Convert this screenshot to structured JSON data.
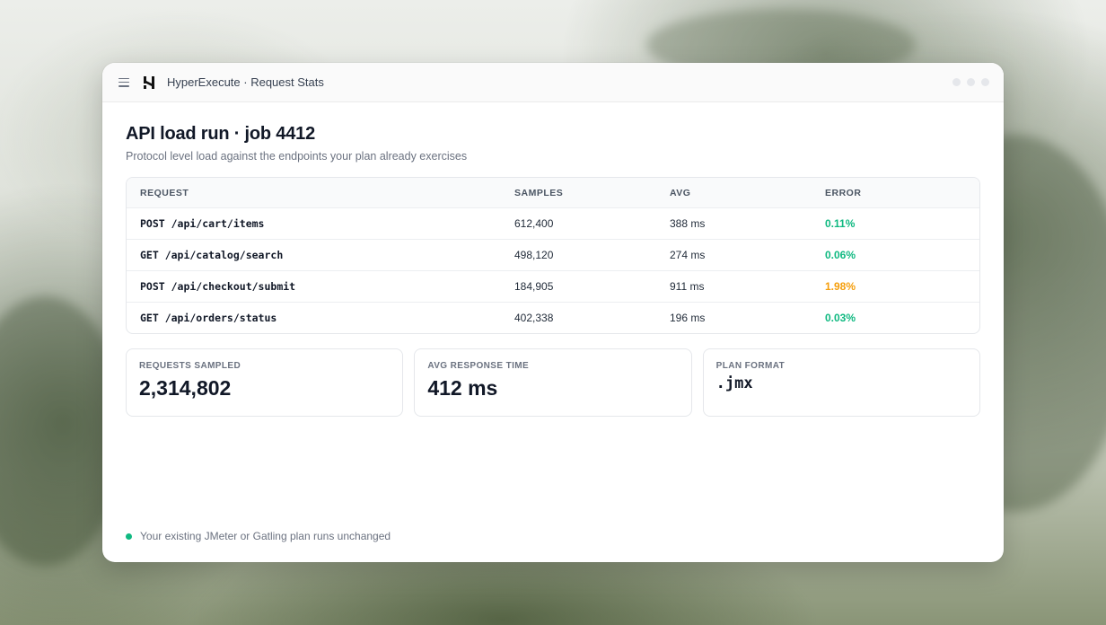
{
  "window": {
    "app_title": "HyperExecute · Request Stats"
  },
  "header": {
    "title": "API load run · job 4412",
    "subtitle": "Protocol level load against the endpoints your plan already exercises"
  },
  "table": {
    "columns": [
      "REQUEST",
      "SAMPLES",
      "AVG",
      "ERROR"
    ],
    "rows": [
      {
        "request": "POST /api/cart/items",
        "samples": "612,400",
        "avg": "388 ms",
        "error": "0.11%",
        "error_status": "ok"
      },
      {
        "request": "GET /api/catalog/search",
        "samples": "498,120",
        "avg": "274 ms",
        "error": "0.06%",
        "error_status": "ok"
      },
      {
        "request": "POST /api/checkout/submit",
        "samples": "184,905",
        "avg": "911 ms",
        "error": "1.98%",
        "error_status": "warn"
      },
      {
        "request": "GET /api/orders/status",
        "samples": "402,338",
        "avg": "196 ms",
        "error": "0.03%",
        "error_status": "ok"
      }
    ]
  },
  "stats": [
    {
      "label": "REQUESTS SAMPLED",
      "value": "2,314,802"
    },
    {
      "label": "AVG RESPONSE TIME",
      "value": "412 ms"
    },
    {
      "label": "PLAN FORMAT",
      "value": ".jmx"
    }
  ],
  "footer": {
    "status_text": "Your existing JMeter or Gatling plan runs unchanged"
  },
  "colors": {
    "ok": "#10b981",
    "warn": "#f59e0b",
    "status_dot": "#10b981"
  }
}
